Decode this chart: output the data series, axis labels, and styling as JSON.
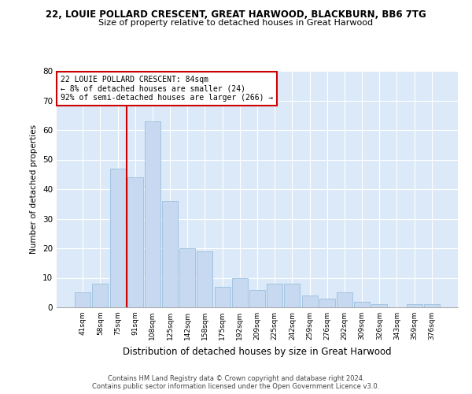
{
  "title1": "22, LOUIE POLLARD CRESCENT, GREAT HARWOOD, BLACKBURN, BB6 7TG",
  "title2": "Size of property relative to detached houses in Great Harwood",
  "xlabel": "Distribution of detached houses by size in Great Harwood",
  "ylabel": "Number of detached properties",
  "categories": [
    "41sqm",
    "58sqm",
    "75sqm",
    "91sqm",
    "108sqm",
    "125sqm",
    "142sqm",
    "158sqm",
    "175sqm",
    "192sqm",
    "209sqm",
    "225sqm",
    "242sqm",
    "259sqm",
    "276sqm",
    "292sqm",
    "309sqm",
    "326sqm",
    "343sqm",
    "359sqm",
    "376sqm"
  ],
  "values": [
    5,
    8,
    47,
    44,
    63,
    36,
    20,
    19,
    7,
    10,
    6,
    8,
    8,
    4,
    3,
    5,
    2,
    1,
    0,
    1,
    1
  ],
  "bar_color": "#c6d9f0",
  "bar_edgecolor": "#8fb8d8",
  "vline_color": "#cc0000",
  "annotation_text": "22 LOUIE POLLARD CRESCENT: 84sqm\n← 8% of detached houses are smaller (24)\n92% of semi-detached houses are larger (266) →",
  "annotation_box_color": "#ffffff",
  "annotation_box_edgecolor": "#cc0000",
  "ylim": [
    0,
    80
  ],
  "yticks": [
    0,
    10,
    20,
    30,
    40,
    50,
    60,
    70,
    80
  ],
  "bg_color": "#dce9f8",
  "footer1": "Contains HM Land Registry data © Crown copyright and database right 2024.",
  "footer2": "Contains public sector information licensed under the Open Government Licence v3.0."
}
